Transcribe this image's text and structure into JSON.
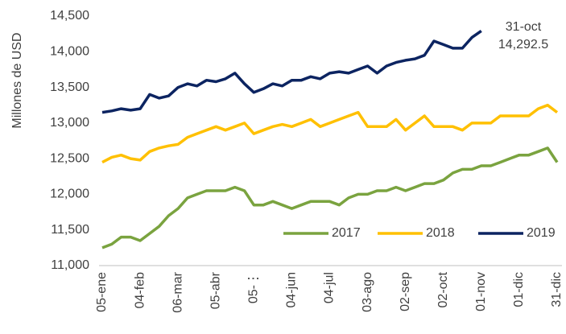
{
  "chart_data": {
    "type": "line",
    "y_label": "Millones de USD",
    "annotation": "31-oct",
    "categories": [
      "05-ene",
      null,
      null,
      null,
      "04-feb",
      null,
      null,
      null,
      "06-mar",
      null,
      null,
      null,
      "05-abr",
      null,
      null,
      null,
      "05-⋮",
      null,
      null,
      null,
      "04-jun",
      null,
      null,
      null,
      "04-jul",
      null,
      null,
      null,
      "03-ago",
      null,
      null,
      null,
      "02-sep",
      null,
      null,
      null,
      "02-oct",
      null,
      null,
      null,
      "01-nov",
      null,
      null,
      null,
      "01-dic",
      null,
      null,
      null,
      "31-dic"
    ],
    "series": [
      {
        "name": "2017",
        "color": "#7aa33f",
        "values": [
          11250,
          11300,
          11400,
          11400,
          11350,
          11450,
          11550,
          11700,
          11800,
          11950,
          12000,
          12050,
          12050,
          12050,
          12100,
          12050,
          11850,
          11850,
          11900,
          11850,
          11800,
          11850,
          11900,
          11900,
          11900,
          11850,
          11950,
          12000,
          12000,
          12050,
          12050,
          12100,
          12050,
          12100,
          12150,
          12150,
          12200,
          12300,
          12350,
          12350,
          12400,
          12400,
          12450,
          12500,
          12550,
          12550,
          12600,
          12650,
          12450
        ]
      },
      {
        "name": "2018",
        "color": "#ffc000",
        "values": [
          12450,
          12520,
          12550,
          12500,
          12480,
          12600,
          12650,
          12680,
          12700,
          12800,
          12850,
          12900,
          12950,
          12900,
          12950,
          13000,
          12850,
          12900,
          12950,
          12980,
          12950,
          13000,
          13050,
          12950,
          13000,
          13050,
          13100,
          13150,
          12950,
          12950,
          12950,
          13050,
          12900,
          13000,
          13100,
          12950,
          12950,
          12950,
          12900,
          13000,
          13000,
          13000,
          13100,
          13100,
          13100,
          13100,
          13200,
          13250,
          13150
        ]
      },
      {
        "name": "2019",
        "color": "#0c2461",
        "values": [
          13150,
          13170,
          13200,
          13180,
          13200,
          13400,
          13350,
          13380,
          13500,
          13550,
          13520,
          13600,
          13580,
          13620,
          13700,
          13550,
          13430,
          13480,
          13550,
          13520,
          13600,
          13600,
          13650,
          13620,
          13700,
          13720,
          13700,
          13750,
          13800,
          13700,
          13800,
          13850,
          13880,
          13900,
          13950,
          14150,
          14100,
          14050,
          14050,
          14200,
          14292.5,
          null,
          null,
          null,
          null,
          null,
          null,
          null,
          null
        ],
        "value_labels": [
          null,
          null,
          null,
          null,
          null,
          null,
          null,
          null,
          null,
          null,
          null,
          null,
          null,
          null,
          null,
          null,
          null,
          null,
          null,
          null,
          null,
          null,
          null,
          null,
          null,
          null,
          null,
          null,
          null,
          null,
          null,
          null,
          null,
          null,
          null,
          null,
          null,
          null,
          null,
          null,
          "14,292.5",
          null,
          null,
          null,
          null,
          null,
          null,
          null,
          null
        ]
      }
    ],
    "ylim": [
      11000,
      14500
    ],
    "yticks": [
      {
        "value": 11000,
        "label": "11,000"
      },
      {
        "value": 11500,
        "label": "11,500"
      },
      {
        "value": 12000,
        "label": "12,000"
      },
      {
        "value": 12500,
        "label": "12,500"
      },
      {
        "value": 13000,
        "label": "13,000"
      },
      {
        "value": 13500,
        "label": "13,500"
      },
      {
        "value": 14000,
        "label": "14,000"
      },
      {
        "value": 14500,
        "label": "14,500"
      }
    ],
    "grid": false,
    "legend": "bottom-right"
  }
}
